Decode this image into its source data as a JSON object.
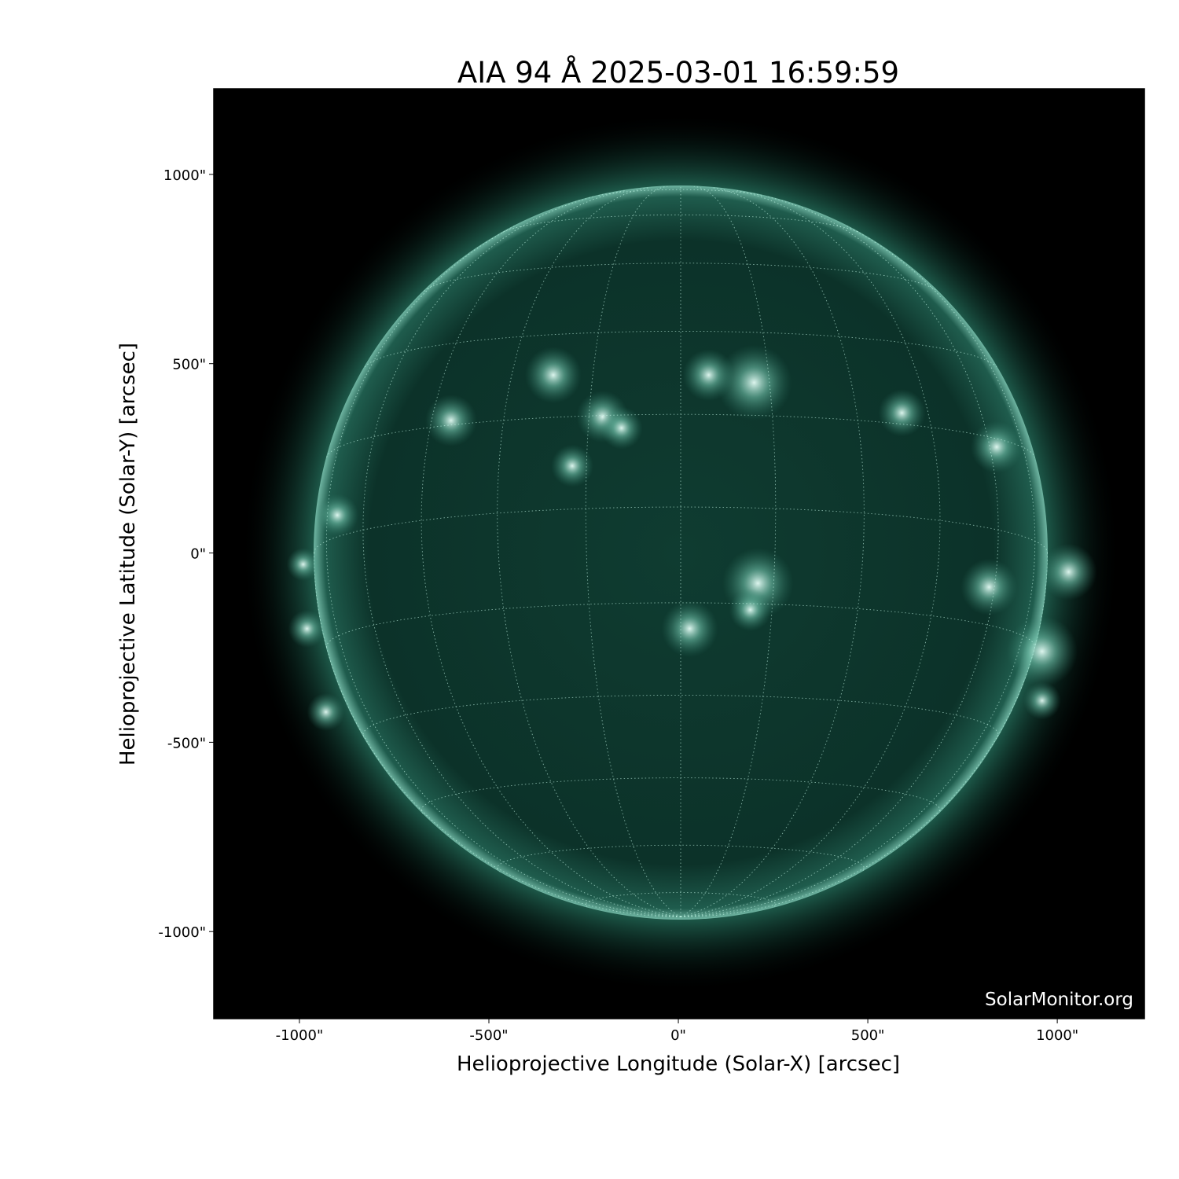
{
  "chart_data": {
    "type": "image",
    "title": "AIA 94 Å 2025-03-01 16:59:59",
    "xlabel": "Helioprojective Longitude (Solar-X) [arcsec]",
    "ylabel": "Helioprojective Latitude (Solar-Y) [arcsec]",
    "xlim": [
      -1226,
      1230
    ],
    "ylim": [
      -1230,
      1226
    ],
    "x_ticks": [
      -1000,
      -500,
      0,
      500,
      1000
    ],
    "x_tick_labels": [
      "-1000\"",
      "-500\"",
      "0\"",
      "500\"",
      "1000\""
    ],
    "y_ticks": [
      1000,
      500,
      0,
      -500,
      -1000
    ],
    "y_tick_labels": [
      "1000\"",
      "500\"",
      "0\"",
      "-500\"",
      "-1000\""
    ],
    "solar_radius_arcsec": 968,
    "grid": "heliographic lat/lon, 15° spacing, dotted white",
    "colormap": "sdoaia94",
    "colors": {
      "background": "#000000",
      "disk": "#0d3a30",
      "bright": "#e8fff8",
      "corona": "#2f7a67"
    },
    "watermark": "SolarMonitor.org"
  }
}
